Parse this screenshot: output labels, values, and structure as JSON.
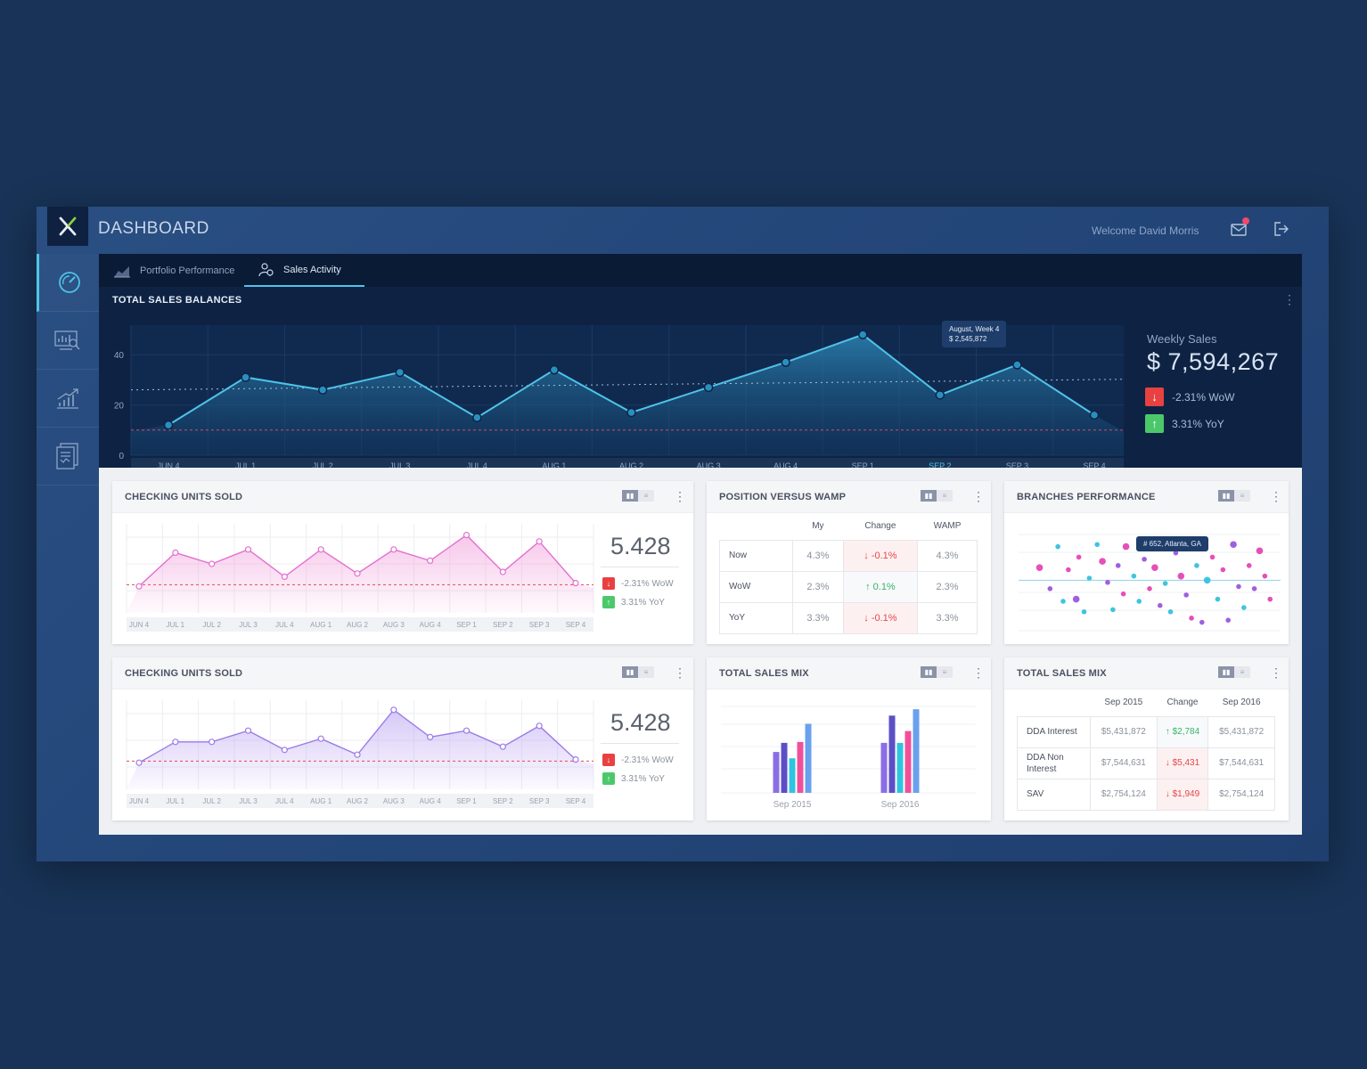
{
  "app": {
    "title": "DASHBOARD",
    "welcome": "Welcome David Morris",
    "logo_letter": "X"
  },
  "colors": {
    "accent": "#4fc3e8",
    "down": "#e84141",
    "up": "#4bc96a",
    "pink": "#e36fcf",
    "purple": "#9b7be8"
  },
  "sidebar": {
    "items": [
      {
        "icon": "gauge-icon",
        "active": true
      },
      {
        "icon": "analytics-search-icon",
        "active": false
      },
      {
        "icon": "growth-chart-icon",
        "active": false
      },
      {
        "icon": "report-document-icon",
        "active": false
      }
    ]
  },
  "header_icons": [
    "mail-icon",
    "logout-icon"
  ],
  "tabs": [
    {
      "label": "Portfolio Performance",
      "active": false,
      "icon": "area-chart-icon"
    },
    {
      "label": "Sales Activity",
      "active": true,
      "icon": "people-icon"
    }
  ],
  "total_sales": {
    "title": "TOTAL SALES BALANCES",
    "weekly_label": "Weekly Sales",
    "weekly_value": "$ 7,594,267",
    "wow": "-2.31% WoW",
    "yoy": "3.31% YoY",
    "tooltip_line1": "August, Week 4",
    "tooltip_line2": "$ 2,545,872"
  },
  "cards": {
    "checking1": {
      "title": "CHECKING UNITS SOLD",
      "value": "5.428",
      "wow": "-2.31% WoW",
      "yoy": "3.31% YoY"
    },
    "checking2": {
      "title": "CHECKING UNITS SOLD",
      "value": "5.428",
      "wow": "-2.31% WoW",
      "yoy": "3.31% YoY"
    },
    "wamp": {
      "title": "POSITION VERSUS WAMP",
      "headers": [
        "My",
        "Change",
        "WAMP"
      ],
      "rows": [
        {
          "label": "Now",
          "my": "4.3%",
          "change": "-0.1%",
          "dir": "down",
          "wamp": "4.3%"
        },
        {
          "label": "WoW",
          "my": "2.3%",
          "change": "0.1%",
          "dir": "up",
          "wamp": "2.3%"
        },
        {
          "label": "YoY",
          "my": "3.3%",
          "change": "-0.1%",
          "dir": "down",
          "wamp": "3.3%"
        }
      ]
    },
    "branches": {
      "title": "BRANCHES PERFORMANCE",
      "tooltip": "# 652, Atlanta, GA"
    },
    "mix_chart": {
      "title": "TOTAL SALES MIX"
    },
    "mix_table": {
      "title": "TOTAL SALES MIX",
      "headers": [
        "Sep 2015",
        "Change",
        "Sep 2016"
      ],
      "rows": [
        {
          "label": "DDA Interest",
          "a": "$5,431,872",
          "change": "$2,784",
          "dir": "up",
          "b": "$5,431,872"
        },
        {
          "label": "DDA Non Interest",
          "a": "$7,544,631",
          "change": "$5,431",
          "dir": "down",
          "b": "$7,544,631"
        },
        {
          "label": "SAV",
          "a": "$2,754,124",
          "change": "$1,949",
          "dir": "down",
          "b": "$2,754,124"
        }
      ]
    }
  },
  "chart_data": [
    {
      "type": "area",
      "title": "TOTAL SALES BALANCES",
      "categories": [
        "JUN 4",
        "JUL 1",
        "JUL 2",
        "JUL 3",
        "JUL 4",
        "AUG 1",
        "AUG 2",
        "AUG 3",
        "AUG 4",
        "SEP 1",
        "SEP 2",
        "SEP 3",
        "SEP 4"
      ],
      "yticks": [
        "0",
        "20",
        "40"
      ],
      "ylim": [
        0,
        50
      ],
      "values": [
        12,
        31,
        26,
        33,
        15,
        34,
        17,
        27,
        37,
        48,
        24,
        36,
        16
      ],
      "reference_lines": [
        10,
        26
      ],
      "highlight_category": "SEP 2"
    },
    {
      "type": "area",
      "title": "CHECKING UNITS SOLD",
      "categories": [
        "JUN 4",
        "JUL 1",
        "JUL 2",
        "JUL 3",
        "JUL 4",
        "AUG 1",
        "AUG 2",
        "AUG 3",
        "AUG 4",
        "SEP 1",
        "SEP 2",
        "SEP 3",
        "SEP 4"
      ],
      "ylim": [
        0,
        50
      ],
      "values": [
        11,
        32,
        25,
        34,
        17,
        34,
        19,
        34,
        27,
        43,
        20,
        39,
        13
      ],
      "reference_line": 12
    },
    {
      "type": "area",
      "title": "CHECKING UNITS SOLD",
      "categories": [
        "JUN 4",
        "JUL 1",
        "JUL 2",
        "JUL 3",
        "JUL 4",
        "AUG 1",
        "AUG 2",
        "AUG 3",
        "AUG 4",
        "SEP 1",
        "SEP 2",
        "SEP 3",
        "SEP 4"
      ],
      "ylim": [
        0,
        50
      ],
      "values": [
        11,
        24,
        24,
        31,
        19,
        26,
        16,
        44,
        27,
        31,
        21,
        34,
        13
      ],
      "reference_line": 12
    },
    {
      "type": "scatter",
      "title": "BRANCHES PERFORMANCE",
      "xlim": [
        0,
        100
      ],
      "ylim": [
        0,
        100
      ],
      "reference_line": 48,
      "points": [
        {
          "x": 8,
          "y": 60,
          "c": "pink"
        },
        {
          "x": 12,
          "y": 40,
          "c": "purple"
        },
        {
          "x": 15,
          "y": 80,
          "c": "cyan"
        },
        {
          "x": 17,
          "y": 28,
          "c": "cyan"
        },
        {
          "x": 19,
          "y": 58,
          "c": "pink"
        },
        {
          "x": 22,
          "y": 30,
          "c": "purple"
        },
        {
          "x": 23,
          "y": 70,
          "c": "pink"
        },
        {
          "x": 25,
          "y": 18,
          "c": "cyan"
        },
        {
          "x": 27,
          "y": 50,
          "c": "cyan"
        },
        {
          "x": 30,
          "y": 82,
          "c": "cyan"
        },
        {
          "x": 32,
          "y": 66,
          "c": "pink"
        },
        {
          "x": 34,
          "y": 46,
          "c": "purple"
        },
        {
          "x": 36,
          "y": 20,
          "c": "cyan"
        },
        {
          "x": 38,
          "y": 62,
          "c": "purple"
        },
        {
          "x": 40,
          "y": 35,
          "c": "pink"
        },
        {
          "x": 41,
          "y": 80,
          "c": "pink"
        },
        {
          "x": 44,
          "y": 52,
          "c": "cyan"
        },
        {
          "x": 46,
          "y": 28,
          "c": "cyan"
        },
        {
          "x": 48,
          "y": 68,
          "c": "purple"
        },
        {
          "x": 50,
          "y": 40,
          "c": "pink"
        },
        {
          "x": 52,
          "y": 60,
          "c": "pink"
        },
        {
          "x": 54,
          "y": 24,
          "c": "purple"
        },
        {
          "x": 56,
          "y": 45,
          "c": "cyan"
        },
        {
          "x": 58,
          "y": 18,
          "c": "cyan"
        },
        {
          "x": 60,
          "y": 74,
          "c": "purple"
        },
        {
          "x": 62,
          "y": 52,
          "c": "pink"
        },
        {
          "x": 64,
          "y": 34,
          "c": "purple"
        },
        {
          "x": 66,
          "y": 12,
          "c": "pink"
        },
        {
          "x": 68,
          "y": 62,
          "c": "cyan"
        },
        {
          "x": 70,
          "y": 8,
          "c": "purple"
        },
        {
          "x": 72,
          "y": 48,
          "c": "cyan"
        },
        {
          "x": 74,
          "y": 70,
          "c": "pink"
        },
        {
          "x": 76,
          "y": 30,
          "c": "cyan"
        },
        {
          "x": 78,
          "y": 58,
          "c": "pink"
        },
        {
          "x": 80,
          "y": 10,
          "c": "purple"
        },
        {
          "x": 82,
          "y": 82,
          "c": "purple"
        },
        {
          "x": 84,
          "y": 42,
          "c": "purple"
        },
        {
          "x": 86,
          "y": 22,
          "c": "cyan"
        },
        {
          "x": 88,
          "y": 62,
          "c": "pink"
        },
        {
          "x": 90,
          "y": 40,
          "c": "purple"
        },
        {
          "x": 92,
          "y": 76,
          "c": "pink"
        },
        {
          "x": 94,
          "y": 52,
          "c": "pink"
        },
        {
          "x": 96,
          "y": 30,
          "c": "pink"
        }
      ]
    },
    {
      "type": "bar",
      "title": "TOTAL SALES MIX",
      "categories": [
        "Sep 2015",
        "Sep 2016"
      ],
      "ylim": [
        0,
        100
      ],
      "series": [
        {
          "values": [
            45,
            55
          ],
          "color": "#8b6ee6"
        },
        {
          "values": [
            55,
            85
          ],
          "color": "#5b4fc8"
        },
        {
          "values": [
            38,
            55
          ],
          "color": "#2fc4e0"
        },
        {
          "values": [
            56,
            68
          ],
          "color": "#f0509a"
        },
        {
          "values": [
            76,
            92
          ],
          "color": "#6aa0ee"
        }
      ]
    }
  ]
}
